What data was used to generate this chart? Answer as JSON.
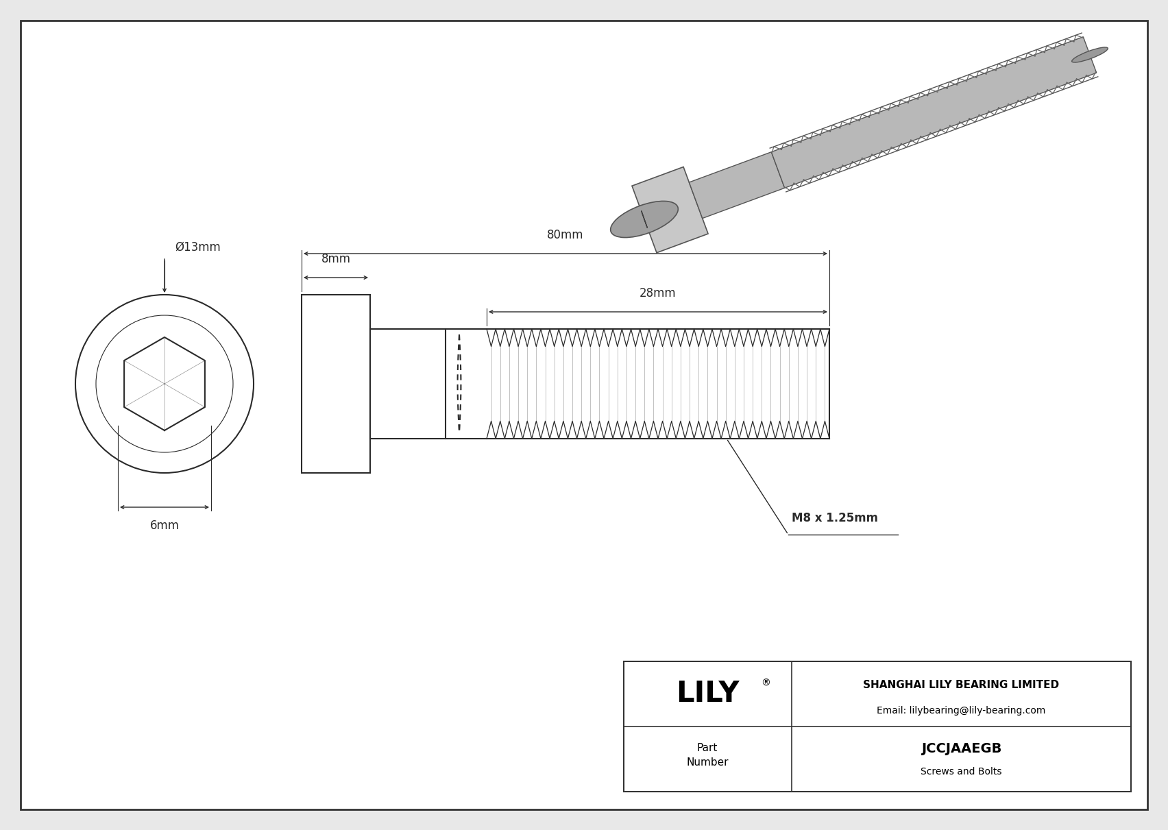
{
  "bg_color": "#e8e8e8",
  "drawing_bg": "#f5f5f5",
  "line_color": "#2a2a2a",
  "dim_color": "#2a2a2a",
  "title_company": "SHANGHAI LILY BEARING LIMITED",
  "title_email": "Email: lilybearing@lily-bearing.com",
  "part_number": "JCCJAAEGB",
  "part_category": "Screws and Bolts",
  "diameter_label": "Ø13mm",
  "hex_label": "6mm",
  "head_width_label": "8mm",
  "total_length_label": "80mm",
  "thread_length_label": "28mm",
  "thread_label": "M8 x 1.25mm"
}
